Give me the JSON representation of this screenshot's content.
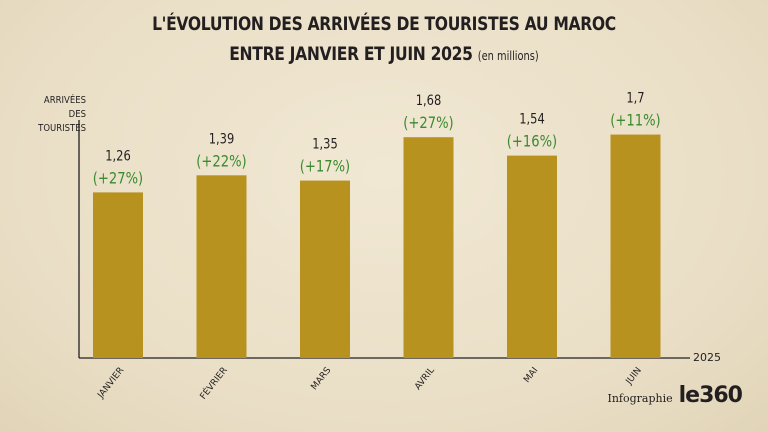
{
  "header": {
    "title_line1": "L'ÉVOLUTION DES ARRIVÉES DE TOURISTES AU MAROC",
    "title_line2": "ENTRE JANVIER ET JUIN 2025",
    "title_unit": "(en millions)"
  },
  "footer": {
    "label": "Infographie",
    "logo": "le360"
  },
  "chart_data": {
    "type": "bar",
    "title": "L'ÉVOLUTION DES ARRIVÉES DE TOURISTES AU MAROC ENTRE JANVIER ET JUIN 2025 (en millions)",
    "ylabel_lines": [
      "ARRIVÉES DES",
      "TOURISTES"
    ],
    "xlabel": "2025",
    "categories": [
      "JANVIER",
      "FÉVRIER",
      "MARS",
      "AVRIL",
      "MAI",
      "JUIN"
    ],
    "values": [
      1.26,
      1.39,
      1.35,
      1.68,
      1.54,
      1.7
    ],
    "value_labels": [
      "1,26",
      "1,39",
      "1,35",
      "1,68",
      "1,54",
      "1,7"
    ],
    "change_labels": [
      "(+27%)",
      "(+22%)",
      "(+17%)",
      "(+27%)",
      "(+16%)",
      "(+11%)"
    ],
    "ylim": [
      0,
      1.75
    ],
    "grid": false,
    "colors": {
      "bar": "#b8921e",
      "change": "#3a8a2e",
      "axis": "#231f20",
      "text": "#231f20"
    }
  }
}
